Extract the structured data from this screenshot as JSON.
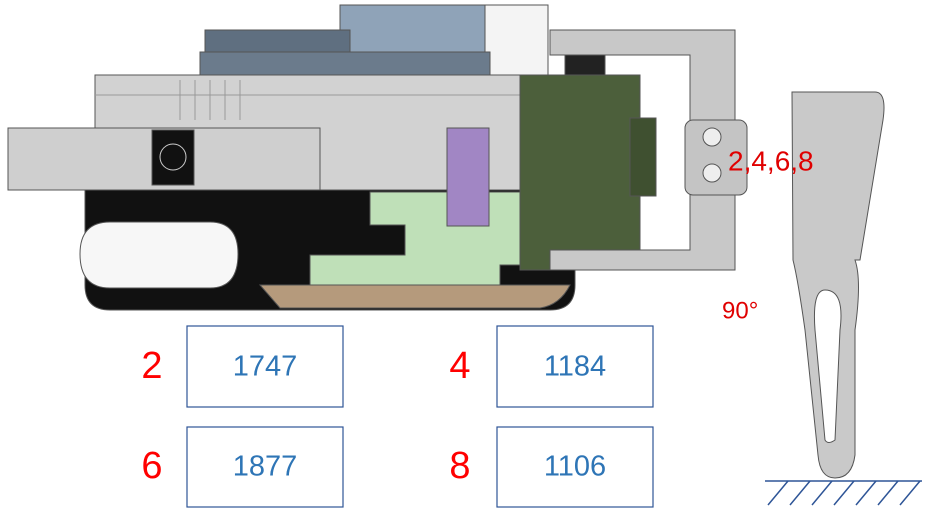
{
  "labels": {
    "servo_ids": "2,4,6,8",
    "angle": "90°"
  },
  "entries": [
    {
      "id": "2",
      "value": "1747"
    },
    {
      "id": "4",
      "value": "1184"
    },
    {
      "id": "6",
      "value": "1877"
    },
    {
      "id": "8",
      "value": "1106"
    }
  ]
}
